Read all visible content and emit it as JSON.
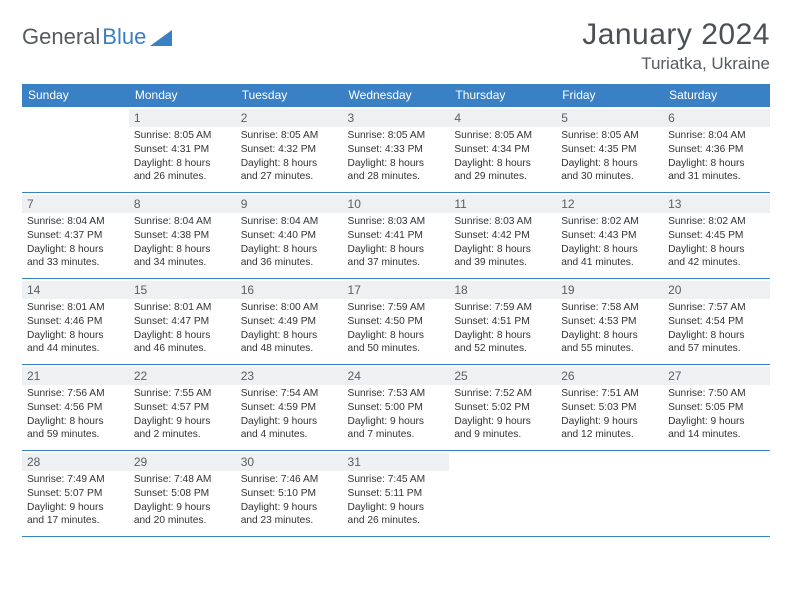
{
  "logo": {
    "part1": "General",
    "part2": "Blue"
  },
  "title": "January 2024",
  "location": "Turiatka, Ukraine",
  "weekdays": [
    "Sunday",
    "Monday",
    "Tuesday",
    "Wednesday",
    "Thursday",
    "Friday",
    "Saturday"
  ],
  "colors": {
    "header_bg": "#3a80c4",
    "header_text": "#ffffff",
    "daybar_bg": "#eef0f1",
    "border": "#3a80c4",
    "title_color": "#4a5055",
    "text_color": "#333333"
  },
  "weeks": [
    [
      {
        "num": "",
        "info": ""
      },
      {
        "num": "1",
        "info": "Sunrise: 8:05 AM\nSunset: 4:31 PM\nDaylight: 8 hours\nand 26 minutes."
      },
      {
        "num": "2",
        "info": "Sunrise: 8:05 AM\nSunset: 4:32 PM\nDaylight: 8 hours\nand 27 minutes."
      },
      {
        "num": "3",
        "info": "Sunrise: 8:05 AM\nSunset: 4:33 PM\nDaylight: 8 hours\nand 28 minutes."
      },
      {
        "num": "4",
        "info": "Sunrise: 8:05 AM\nSunset: 4:34 PM\nDaylight: 8 hours\nand 29 minutes."
      },
      {
        "num": "5",
        "info": "Sunrise: 8:05 AM\nSunset: 4:35 PM\nDaylight: 8 hours\nand 30 minutes."
      },
      {
        "num": "6",
        "info": "Sunrise: 8:04 AM\nSunset: 4:36 PM\nDaylight: 8 hours\nand 31 minutes."
      }
    ],
    [
      {
        "num": "7",
        "info": "Sunrise: 8:04 AM\nSunset: 4:37 PM\nDaylight: 8 hours\nand 33 minutes."
      },
      {
        "num": "8",
        "info": "Sunrise: 8:04 AM\nSunset: 4:38 PM\nDaylight: 8 hours\nand 34 minutes."
      },
      {
        "num": "9",
        "info": "Sunrise: 8:04 AM\nSunset: 4:40 PM\nDaylight: 8 hours\nand 36 minutes."
      },
      {
        "num": "10",
        "info": "Sunrise: 8:03 AM\nSunset: 4:41 PM\nDaylight: 8 hours\nand 37 minutes."
      },
      {
        "num": "11",
        "info": "Sunrise: 8:03 AM\nSunset: 4:42 PM\nDaylight: 8 hours\nand 39 minutes."
      },
      {
        "num": "12",
        "info": "Sunrise: 8:02 AM\nSunset: 4:43 PM\nDaylight: 8 hours\nand 41 minutes."
      },
      {
        "num": "13",
        "info": "Sunrise: 8:02 AM\nSunset: 4:45 PM\nDaylight: 8 hours\nand 42 minutes."
      }
    ],
    [
      {
        "num": "14",
        "info": "Sunrise: 8:01 AM\nSunset: 4:46 PM\nDaylight: 8 hours\nand 44 minutes."
      },
      {
        "num": "15",
        "info": "Sunrise: 8:01 AM\nSunset: 4:47 PM\nDaylight: 8 hours\nand 46 minutes."
      },
      {
        "num": "16",
        "info": "Sunrise: 8:00 AM\nSunset: 4:49 PM\nDaylight: 8 hours\nand 48 minutes."
      },
      {
        "num": "17",
        "info": "Sunrise: 7:59 AM\nSunset: 4:50 PM\nDaylight: 8 hours\nand 50 minutes."
      },
      {
        "num": "18",
        "info": "Sunrise: 7:59 AM\nSunset: 4:51 PM\nDaylight: 8 hours\nand 52 minutes."
      },
      {
        "num": "19",
        "info": "Sunrise: 7:58 AM\nSunset: 4:53 PM\nDaylight: 8 hours\nand 55 minutes."
      },
      {
        "num": "20",
        "info": "Sunrise: 7:57 AM\nSunset: 4:54 PM\nDaylight: 8 hours\nand 57 minutes."
      }
    ],
    [
      {
        "num": "21",
        "info": "Sunrise: 7:56 AM\nSunset: 4:56 PM\nDaylight: 8 hours\nand 59 minutes."
      },
      {
        "num": "22",
        "info": "Sunrise: 7:55 AM\nSunset: 4:57 PM\nDaylight: 9 hours\nand 2 minutes."
      },
      {
        "num": "23",
        "info": "Sunrise: 7:54 AM\nSunset: 4:59 PM\nDaylight: 9 hours\nand 4 minutes."
      },
      {
        "num": "24",
        "info": "Sunrise: 7:53 AM\nSunset: 5:00 PM\nDaylight: 9 hours\nand 7 minutes."
      },
      {
        "num": "25",
        "info": "Sunrise: 7:52 AM\nSunset: 5:02 PM\nDaylight: 9 hours\nand 9 minutes."
      },
      {
        "num": "26",
        "info": "Sunrise: 7:51 AM\nSunset: 5:03 PM\nDaylight: 9 hours\nand 12 minutes."
      },
      {
        "num": "27",
        "info": "Sunrise: 7:50 AM\nSunset: 5:05 PM\nDaylight: 9 hours\nand 14 minutes."
      }
    ],
    [
      {
        "num": "28",
        "info": "Sunrise: 7:49 AM\nSunset: 5:07 PM\nDaylight: 9 hours\nand 17 minutes."
      },
      {
        "num": "29",
        "info": "Sunrise: 7:48 AM\nSunset: 5:08 PM\nDaylight: 9 hours\nand 20 minutes."
      },
      {
        "num": "30",
        "info": "Sunrise: 7:46 AM\nSunset: 5:10 PM\nDaylight: 9 hours\nand 23 minutes."
      },
      {
        "num": "31",
        "info": "Sunrise: 7:45 AM\nSunset: 5:11 PM\nDaylight: 9 hours\nand 26 minutes."
      },
      {
        "num": "",
        "info": ""
      },
      {
        "num": "",
        "info": ""
      },
      {
        "num": "",
        "info": ""
      }
    ]
  ]
}
